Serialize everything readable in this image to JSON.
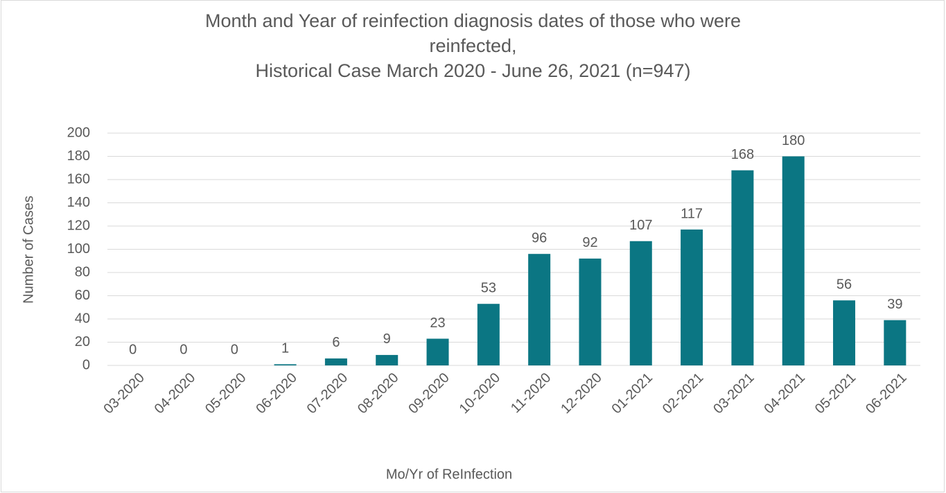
{
  "chart_data": {
    "type": "bar",
    "title": "Month and Year of reinfection diagnosis dates of those who were reinfected,",
    "subtitle": "Historical Case March 2020 - June 26, 2021 (n=947)",
    "x_label": "Mo/Yr of ReInfection",
    "y_label": "Number of Cases",
    "categories": [
      "03-2020",
      "04-2020",
      "05-2020",
      "06-2020",
      "07-2020",
      "08-2020",
      "09-2020",
      "10-2020",
      "11-2020",
      "12-2020",
      "01-2021",
      "02-2021",
      "03-2021",
      "04-2021",
      "05-2021",
      "06-2021"
    ],
    "values": [
      0,
      0,
      0,
      1,
      6,
      9,
      23,
      53,
      96,
      92,
      107,
      117,
      168,
      180,
      56,
      39
    ],
    "color": "#0b7683",
    "ylim": [
      0,
      200
    ],
    "yticks": [
      0,
      20,
      40,
      60,
      80,
      100,
      120,
      140,
      160,
      180,
      200
    ],
    "grid": true
  }
}
